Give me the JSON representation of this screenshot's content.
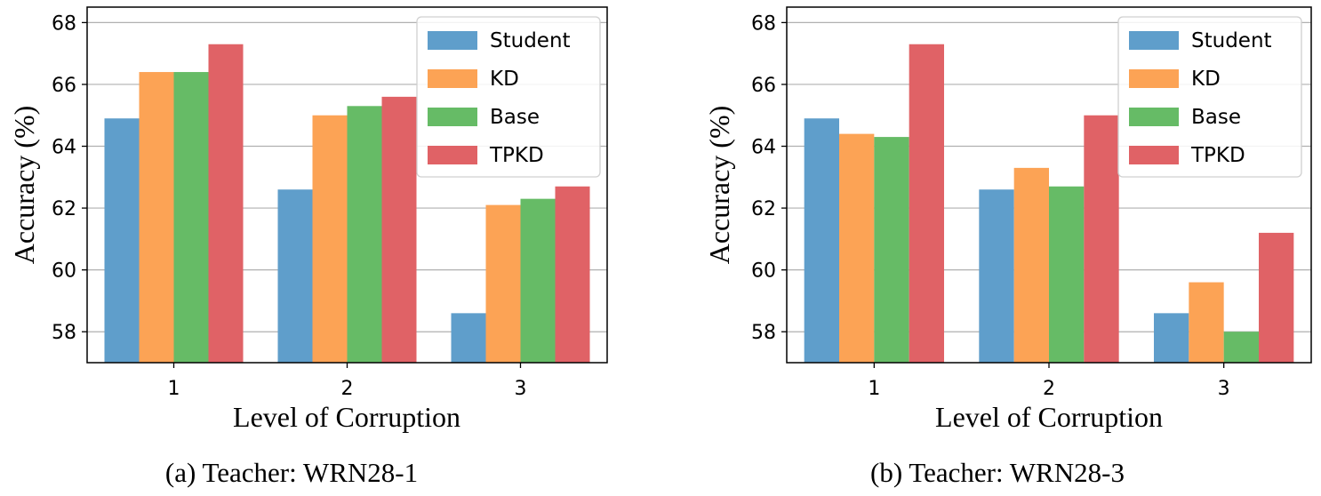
{
  "chart_data": [
    {
      "type": "bar",
      "caption": "(a) Teacher: WRN28-1",
      "xlabel": "Level of Corruption",
      "ylabel": "Accuracy (%)",
      "categories": [
        "1",
        "2",
        "3"
      ],
      "ylim": [
        57,
        68.5
      ],
      "yticks": [
        58,
        60,
        62,
        64,
        66,
        68
      ],
      "grid": true,
      "legend_position": "top-right",
      "series": [
        {
          "name": "Student",
          "color": "#5f9ecb",
          "values": [
            64.9,
            62.6,
            58.6
          ]
        },
        {
          "name": "KD",
          "color": "#fca355",
          "values": [
            66.4,
            65.0,
            62.1
          ]
        },
        {
          "name": "Base",
          "color": "#66bb66",
          "values": [
            66.4,
            65.3,
            62.3
          ]
        },
        {
          "name": "TPKD",
          "color": "#e06266",
          "values": [
            67.3,
            65.6,
            62.7
          ]
        }
      ]
    },
    {
      "type": "bar",
      "caption": "(b) Teacher: WRN28-3",
      "xlabel": "Level of Corruption",
      "ylabel": "Accuracy (%)",
      "categories": [
        "1",
        "2",
        "3"
      ],
      "ylim": [
        57,
        68.5
      ],
      "yticks": [
        58,
        60,
        62,
        64,
        66,
        68
      ],
      "grid": true,
      "legend_position": "top-right",
      "series": [
        {
          "name": "Student",
          "color": "#5f9ecb",
          "values": [
            64.9,
            62.6,
            58.6
          ]
        },
        {
          "name": "KD",
          "color": "#fca355",
          "values": [
            64.4,
            63.3,
            59.6
          ]
        },
        {
          "name": "Base",
          "color": "#66bb66",
          "values": [
            64.3,
            62.7,
            58.0
          ]
        },
        {
          "name": "TPKD",
          "color": "#e06266",
          "values": [
            67.3,
            65.0,
            61.2
          ]
        }
      ]
    }
  ]
}
